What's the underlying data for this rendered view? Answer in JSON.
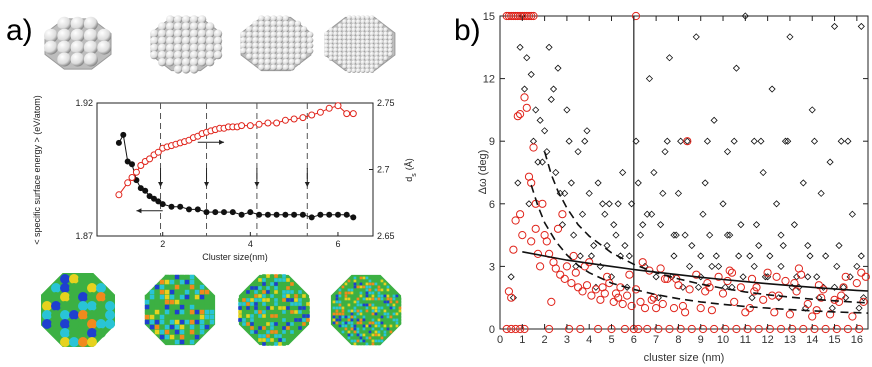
{
  "panels": {
    "a_label": "a)",
    "b_label": "b)"
  },
  "colors": {
    "red": "#e0241b",
    "black": "#111111",
    "sphere": "#dcdcdc",
    "green": "#3cb043",
    "blue": "#1e3fcf",
    "cyan": "#29c4d6",
    "yellow": "#e6d21e",
    "orange": "#f08a1c"
  },
  "clusters_top": {
    "icon": "gray-atom-cluster-icons"
  },
  "clusters_bottom": {
    "icon": "colored-atom-cluster-icons"
  },
  "chart_data": [
    {
      "type": "line",
      "panel": "a",
      "xlabel": "Cluster size(nm)",
      "ylabel_left": "< specific surface energy > (eV/atom)",
      "ylabel_right": "d",
      "ylabel_right_sub": "s",
      "ylabel_right_unit": "(Å)",
      "xlim": [
        0.5,
        6.8
      ],
      "xticks": [
        "2",
        "4",
        "6"
      ],
      "ylim_left": [
        1.87,
        1.92
      ],
      "yticks_left": [
        "1.87",
        "1.92"
      ],
      "ylim_right": [
        2.65,
        2.75
      ],
      "yticks_right": [
        "2.65",
        "2.7",
        "2.75"
      ],
      "grid": false,
      "dashed_vlines": [
        1.95,
        3.0,
        4.15,
        5.3
      ],
      "series": [
        {
          "axis": "left",
          "color": "#111111",
          "marker": "filled-circle",
          "x": [
            1.0,
            1.1,
            1.2,
            1.3,
            1.4,
            1.5,
            1.6,
            1.7,
            1.8,
            1.9,
            2.0,
            2.2,
            2.4,
            2.6,
            2.8,
            3.0,
            3.2,
            3.4,
            3.6,
            3.8,
            4.0,
            4.2,
            4.4,
            4.6,
            4.8,
            5.0,
            5.2,
            5.4,
            5.6,
            5.8,
            6.0,
            6.2,
            6.35
          ],
          "y": [
            1.905,
            1.908,
            1.898,
            1.897,
            1.891,
            1.888,
            1.887,
            1.885,
            1.884,
            1.883,
            1.882,
            1.881,
            1.881,
            1.88,
            1.88,
            1.879,
            1.879,
            1.879,
            1.879,
            1.878,
            1.879,
            1.878,
            1.878,
            1.878,
            1.878,
            1.878,
            1.878,
            1.877,
            1.878,
            1.878,
            1.878,
            1.878,
            1.877
          ]
        },
        {
          "axis": "right",
          "color": "#e0241b",
          "marker": "open-circle",
          "x": [
            1.0,
            1.2,
            1.3,
            1.4,
            1.5,
            1.6,
            1.7,
            1.8,
            1.9,
            2.0,
            2.1,
            2.2,
            2.3,
            2.4,
            2.5,
            2.6,
            2.7,
            2.8,
            2.9,
            3.0,
            3.1,
            3.2,
            3.3,
            3.4,
            3.5,
            3.6,
            3.7,
            3.8,
            4.0,
            4.2,
            4.4,
            4.6,
            4.8,
            5.0,
            5.2,
            5.4,
            5.6,
            5.8,
            6.0,
            6.2,
            6.35
          ],
          "y": [
            2.681,
            2.69,
            2.694,
            2.698,
            2.703,
            2.706,
            2.708,
            2.711,
            2.713,
            2.716,
            2.717,
            2.718,
            2.719,
            2.72,
            2.721,
            2.722,
            2.724,
            2.725,
            2.727,
            2.728,
            2.729,
            2.73,
            2.731,
            2.731,
            2.732,
            2.732,
            2.732,
            2.733,
            2.733,
            2.734,
            2.735,
            2.735,
            2.737,
            2.738,
            2.739,
            2.741,
            2.743,
            2.746,
            2.748,
            2.742,
            2.742
          ]
        }
      ],
      "annotations": [
        {
          "type": "arrow",
          "direction": "left",
          "x_from": 2.0,
          "x_to": 1.4,
          "y": 1.8795,
          "axis": "left"
        },
        {
          "type": "arrow",
          "direction": "right",
          "x_from": 2.8,
          "x_to": 3.4,
          "y": 2.7205,
          "axis": "right"
        }
      ]
    },
    {
      "type": "scatter",
      "panel": "b",
      "xlabel": "cluster size (nm)",
      "ylabel": "Δω (deg)",
      "xlim": [
        0,
        16.5
      ],
      "xticks": [
        "0",
        "1",
        "2",
        "3",
        "4",
        "5",
        "6",
        "7",
        "8",
        "9",
        "10",
        "11",
        "12",
        "13",
        "14",
        "15",
        "16"
      ],
      "ylim": [
        0,
        15
      ],
      "yticks": [
        "0",
        "3",
        "6",
        "9",
        "12",
        "15"
      ],
      "grid": false,
      "solid_vline": 6.0,
      "series": [
        {
          "marker": "open-diamond",
          "color": "#111111",
          "x": [
            0.5,
            0.6,
            0.8,
            1.0,
            1.2,
            1.4,
            1.5,
            1.7,
            1.8,
            2.0,
            2.2,
            2.3,
            2.5,
            2.6,
            2.8,
            3.0,
            3.1,
            3.3,
            3.5,
            3.6,
            3.8,
            4.0,
            4.2,
            4.4,
            4.5,
            4.7,
            4.9,
            5.0,
            5.2,
            5.4,
            5.5,
            5.7,
            5.9,
            6.1,
            6.3,
            6.5,
            6.7,
            6.9,
            7.0,
            7.2,
            7.4,
            7.6,
            7.8,
            8.0,
            8.2,
            8.4,
            8.6,
            8.8,
            9.0,
            9.2,
            9.4,
            9.6,
            9.8,
            10.0,
            10.2,
            10.4,
            10.6,
            10.8,
            11.0,
            11.2,
            11.4,
            11.6,
            11.8,
            12.0,
            12.2,
            12.4,
            12.6,
            12.8,
            13.0,
            13.2,
            13.4,
            13.6,
            13.8,
            14.0,
            14.2,
            14.4,
            14.6,
            14.8,
            15.0,
            15.2,
            15.4,
            15.6,
            15.8,
            16.0,
            16.2,
            1.1,
            1.6,
            2.1,
            2.7,
            3.2,
            3.7,
            4.1,
            4.6,
            5.1,
            5.6,
            6.2,
            6.8,
            7.3,
            7.9,
            8.5,
            9.1,
            9.7,
            10.3,
            10.9,
            11.5,
            12.1,
            12.7,
            13.3,
            13.9,
            14.5,
            15.1,
            15.7,
            16.3,
            0.9,
            1.3,
            1.9,
            2.4,
            2.9,
            3.4,
            3.9,
            4.3,
            4.8,
            5.3,
            5.8,
            6.4,
            7.1,
            7.7,
            8.3,
            8.9,
            9.5,
            10.1,
            10.7,
            11.3,
            11.9,
            12.5,
            13.1,
            13.7,
            14.3,
            14.9,
            15.5,
            16.1,
            7.5,
            8.1,
            9.3,
            10.5,
            11.7,
            12.9,
            14.1,
            15.3,
            6.6,
            7.8,
            9.0,
            10.2,
            11.4,
            12.6,
            13.8,
            15.0,
            16.2
          ],
          "y": [
            2.5,
            1.5,
            7.0,
            15.0,
            13.0,
            12.2,
            9.0,
            8.0,
            10.0,
            9.5,
            13.5,
            11.0,
            7.5,
            12.5,
            5.0,
            10.5,
            9.0,
            4.5,
            8.5,
            3.5,
            9.0,
            6.5,
            4.0,
            7.0,
            3.0,
            5.5,
            6.0,
            2.5,
            4.5,
            3.5,
            7.5,
            2.0,
            6.0,
            9.0,
            4.5,
            3.0,
            12.0,
            7.5,
            2.5,
            5.0,
            8.5,
            13.0,
            3.5,
            6.5,
            2.0,
            9.0,
            4.0,
            14.0,
            2.5,
            7.0,
            4.5,
            10.0,
            3.0,
            6.0,
            8.5,
            2.0,
            12.5,
            5.0,
            15.0,
            3.5,
            9.0,
            4.0,
            7.5,
            2.5,
            11.5,
            6.0,
            3.0,
            9.0,
            14.0,
            5.0,
            2.0,
            7.0,
            4.0,
            10.5,
            2.5,
            6.5,
            3.5,
            8.0,
            14.5,
            4.0,
            2.0,
            9.0,
            5.5,
            3.0,
            14.5,
            11.5,
            10.5,
            8.5,
            6.5,
            7.0,
            5.5,
            3.5,
            6.0,
            5.0,
            4.0,
            7.0,
            5.5,
            6.5,
            4.5,
            3.0,
            5.5,
            3.5,
            4.5,
            2.5,
            5.0,
            3.5,
            4.0,
            2.5,
            3.5,
            2.0,
            3.0,
            2.5,
            1.5,
            13.5,
            6.0,
            8.0,
            11.5,
            6.5,
            3.0,
            9.5,
            2.0,
            4.0,
            6.0,
            3.5,
            5.0,
            1.5,
            2.5,
            4.5,
            2.0,
            3.0,
            2.0,
            3.5,
            1.5,
            2.5,
            1.5,
            2.0,
            1.0,
            1.5,
            1.0,
            1.5,
            1.0,
            9.0,
            9.0,
            9.0,
            9.0,
            9.0,
            9.0,
            9.0,
            9.0,
            5.5,
            4.5,
            3.5,
            4.5,
            3.0,
            4.5,
            2.5,
            2.0,
            3.5
          ]
        },
        {
          "marker": "open-circle",
          "color": "#e0241b",
          "x": [
            0.4,
            0.5,
            0.6,
            0.7,
            0.8,
            0.9,
            1.0,
            1.1,
            1.2,
            1.3,
            1.4,
            1.5,
            1.6,
            1.7,
            1.8,
            2.0,
            2.1,
            2.2,
            2.4,
            2.5,
            2.7,
            2.9,
            3.0,
            3.2,
            3.4,
            3.5,
            3.7,
            3.9,
            4.1,
            4.3,
            4.5,
            4.7,
            4.9,
            5.1,
            5.3,
            5.5,
            5.7,
            5.9,
            6.1,
            6.3,
            6.5,
            6.8,
            7.0,
            7.3,
            7.5,
            7.8,
            8.0,
            8.3,
            8.5,
            8.8,
            9.0,
            9.3,
            9.5,
            9.8,
            10.0,
            10.3,
            10.5,
            10.8,
            11.0,
            11.3,
            11.5,
            11.8,
            12.0,
            12.3,
            12.5,
            12.8,
            13.0,
            13.3,
            13.5,
            13.8,
            14.0,
            14.3,
            14.5,
            14.8,
            15.0,
            15.3,
            15.5,
            15.8,
            16.0,
            16.3,
            0.3,
            0.4,
            0.5,
            0.6,
            0.7,
            0.8,
            0.9,
            1.0,
            1.1,
            1.2,
            1.3,
            1.4,
            1.5,
            0.3,
            0.5,
            0.7,
            0.9,
            1.1,
            2.2,
            3.1,
            3.6,
            4.4,
            5.0,
            5.6,
            6.0,
            6.2,
            6.6,
            7.1,
            7.6,
            8.1,
            8.6,
            9.1,
            9.6,
            10.1,
            10.6,
            11.1,
            11.6,
            12.1,
            12.6,
            13.1,
            13.6,
            14.1,
            14.6,
            15.1,
            15.6,
            16.1,
            0.9,
            1.6,
            2.6,
            3.3,
            4.0,
            4.8,
            5.4,
            6.1,
            6.7,
            7.2,
            7.9,
            8.4,
            9.4,
            10.4,
            11.4,
            12.4,
            13.4,
            14.4,
            15.4,
            16.4,
            1.4,
            1.9,
            2.3,
            2.8,
            3.8,
            4.6,
            5.2,
            5.8,
            6.4,
            6.9,
            7.4,
            8.2,
            9.2,
            10.2,
            11.2,
            12.2,
            13.2,
            14.2,
            15.2,
            16.2
          ],
          "y": [
            1.8,
            1.5,
            3.8,
            5.2,
            10.2,
            10.3,
            4.5,
            11.1,
            10.6,
            7.3,
            7.0,
            8.7,
            4.8,
            3.6,
            3.0,
            4.5,
            4.2,
            3.6,
            3.2,
            2.9,
            2.6,
            2.4,
            3.0,
            2.2,
            2.7,
            2.0,
            1.8,
            2.1,
            1.6,
            1.9,
            1.4,
            1.7,
            2.2,
            1.3,
            1.5,
            1.2,
            1.6,
            1.1,
            15.0,
            1.3,
            1.0,
            1.4,
            1.0,
            1.2,
            2.4,
            1.0,
            2.1,
            0.8,
            1.9,
            2.6,
            1.0,
            2.2,
            0.9,
            2.5,
            1.7,
            2.8,
            1.3,
            2.0,
            0.8,
            2.4,
            2.0,
            1.4,
            2.7,
            0.8,
            1.6,
            2.3,
            0.7,
            1.8,
            2.6,
            1.2,
            0.6,
            2.1,
            1.9,
            0.7,
            1.4,
            1.6,
            2.5,
            0.6,
            2.2,
            1.3,
            15.0,
            15.0,
            15.0,
            15.0,
            15.0,
            15.0,
            15.0,
            15.0,
            15.0,
            15.0,
            15.0,
            15.0,
            15.0,
            0.0,
            0.0,
            0.0,
            0.0,
            0.0,
            0.0,
            0.0,
            0.0,
            0.0,
            0.0,
            0.0,
            0.0,
            0.0,
            0.0,
            0.0,
            0.0,
            0.0,
            0.0,
            0.0,
            0.0,
            0.0,
            0.0,
            0.0,
            0.0,
            0.0,
            0.0,
            0.0,
            0.0,
            0.0,
            0.0,
            0.0,
            0.0,
            0.0,
            5.5,
            6.0,
            4.8,
            3.5,
            3.2,
            2.5,
            2.0,
            1.9,
            2.8,
            2.9,
            2.4,
            9.0,
            2.0,
            2.7,
            1.8,
            2.5,
            2.9,
            1.5,
            2.0,
            2.5,
            4.2,
            6.0,
            1.3,
            5.5,
            3.0,
            2.0,
            1.7,
            2.6,
            3.2,
            1.5,
            2.4,
            1.1,
            1.8,
            2.3,
            1.0,
            1.6,
            2.2,
            0.9,
            1.3,
            2.7
          ]
        }
      ],
      "fit_curves": [
        {
          "style": "solid",
          "color": "#111111",
          "x": [
            1.0,
            2.0,
            3.0,
            4.0,
            5.0,
            6.0,
            7.0,
            8.0,
            9.0,
            10.0,
            11.0,
            12.0,
            13.0,
            14.0,
            15.0,
            16.0,
            16.5
          ],
          "y": [
            3.7,
            3.5,
            3.3,
            3.15,
            3.0,
            2.85,
            2.72,
            2.6,
            2.48,
            2.37,
            2.27,
            2.17,
            2.08,
            2.0,
            1.92,
            1.85,
            1.82
          ]
        },
        {
          "style": "dashed",
          "color": "#111111",
          "x": [
            1.4,
            1.7,
            2.0,
            2.5,
            3.0,
            3.5,
            4.0,
            5.0,
            6.0,
            7.0,
            8.0,
            9.0,
            10.0,
            11.0,
            12.0,
            13.0,
            14.0,
            15.0,
            16.0,
            16.5
          ],
          "y": [
            6.9,
            5.9,
            5.1,
            4.2,
            3.55,
            3.05,
            2.7,
            2.2,
            1.9,
            1.65,
            1.45,
            1.3,
            1.18,
            1.08,
            1.0,
            0.93,
            0.87,
            0.82,
            0.78,
            0.76
          ]
        },
        {
          "style": "dashed",
          "color": "#111111",
          "x": [
            2.0,
            2.3,
            2.6,
            3.0,
            3.5,
            4.0,
            5.0,
            6.0,
            7.0,
            8.0,
            9.0,
            10.0,
            11.0,
            12.0,
            13.0,
            14.0,
            15.0,
            16.0,
            16.5
          ],
          "y": [
            8.5,
            7.4,
            6.6,
            5.8,
            5.0,
            4.45,
            3.65,
            3.1,
            2.7,
            2.4,
            2.15,
            1.95,
            1.78,
            1.64,
            1.53,
            1.43,
            1.35,
            1.28,
            1.25
          ]
        }
      ]
    }
  ]
}
